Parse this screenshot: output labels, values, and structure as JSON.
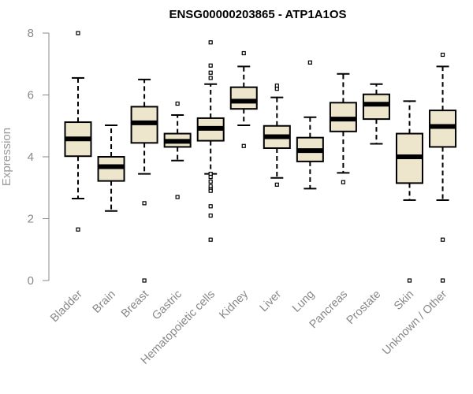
{
  "chart_data": {
    "type": "boxplot",
    "title": "ENSG00000203865 - ATP1A1OS",
    "xlabel": "",
    "ylabel": "Expression",
    "ylim": [
      0,
      8
    ],
    "yticks": [
      0,
      2,
      4,
      6,
      8
    ],
    "grid": false,
    "colors": {
      "box_fill": "#ede6cc",
      "box_stroke": "#000000",
      "axis": "#888888"
    },
    "categories": [
      "Bladder",
      "Brain",
      "Breast",
      "Gastric",
      "Hematopoietic cells",
      "Kidney",
      "Liver",
      "Lung",
      "Pancreas",
      "Prostate",
      "Skin",
      "Unknown / Other"
    ],
    "boxes": [
      {
        "name": "Bladder",
        "whisker_low": 2.65,
        "q1": 4.02,
        "median": 4.58,
        "q3": 5.12,
        "whisker_high": 6.55,
        "outliers": [
          8.0,
          1.65
        ]
      },
      {
        "name": "Brain",
        "whisker_low": 2.25,
        "q1": 3.22,
        "median": 3.68,
        "q3": 4.0,
        "whisker_high": 5.02,
        "outliers": []
      },
      {
        "name": "Breast",
        "whisker_low": 3.45,
        "q1": 4.45,
        "median": 5.1,
        "q3": 5.62,
        "whisker_high": 6.5,
        "outliers": [
          2.5,
          0.0
        ]
      },
      {
        "name": "Gastric",
        "whisker_low": 3.88,
        "q1": 4.32,
        "median": 4.5,
        "q3": 4.75,
        "whisker_high": 5.35,
        "outliers": [
          5.72,
          2.7
        ]
      },
      {
        "name": "Hematopoietic cells",
        "whisker_low": 3.45,
        "q1": 4.52,
        "median": 4.92,
        "q3": 5.25,
        "whisker_high": 6.35,
        "outliers": [
          7.7,
          6.95,
          6.72,
          6.55,
          3.45,
          3.35,
          3.2,
          3.05,
          2.95,
          2.9,
          2.4,
          2.1,
          1.32
        ]
      },
      {
        "name": "Kidney",
        "whisker_low": 5.02,
        "q1": 5.55,
        "median": 5.8,
        "q3": 6.25,
        "whisker_high": 6.92,
        "outliers": [
          7.35,
          4.35
        ]
      },
      {
        "name": "Liver",
        "whisker_low": 3.32,
        "q1": 4.28,
        "median": 4.65,
        "q3": 5.0,
        "whisker_high": 5.92,
        "outliers": [
          6.3,
          6.2,
          3.1
        ]
      },
      {
        "name": "Lung",
        "whisker_low": 2.97,
        "q1": 3.85,
        "median": 4.2,
        "q3": 4.62,
        "whisker_high": 5.28,
        "outliers": [
          7.05
        ]
      },
      {
        "name": "Pancreas",
        "whisker_low": 3.48,
        "q1": 4.82,
        "median": 5.22,
        "q3": 5.75,
        "whisker_high": 6.68,
        "outliers": [
          3.18
        ]
      },
      {
        "name": "Prostate",
        "whisker_low": 4.42,
        "q1": 5.22,
        "median": 5.7,
        "q3": 6.02,
        "whisker_high": 6.35,
        "outliers": []
      },
      {
        "name": "Skin",
        "whisker_low": 2.6,
        "q1": 3.15,
        "median": 4.0,
        "q3": 4.75,
        "whisker_high": 5.8,
        "outliers": [
          0.0
        ]
      },
      {
        "name": "Unknown / Other",
        "whisker_low": 2.6,
        "q1": 4.32,
        "median": 4.98,
        "q3": 5.5,
        "whisker_high": 6.92,
        "outliers": [
          7.3,
          1.32,
          0.0
        ]
      }
    ]
  }
}
